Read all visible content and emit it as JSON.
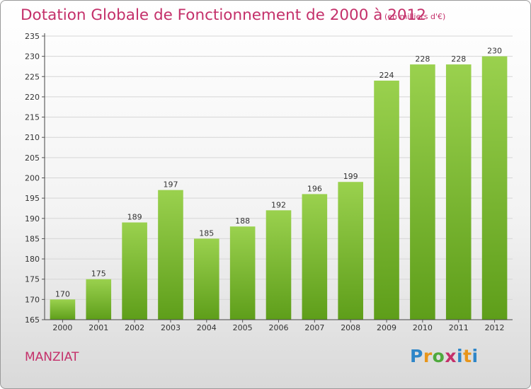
{
  "chart_data": {
    "type": "bar",
    "title": "Dotation Globale de Fonctionnement de 2000 à 2012",
    "subtitle": "(en milliers d'€)",
    "categories": [
      "2000",
      "2001",
      "2002",
      "2003",
      "2004",
      "2005",
      "2006",
      "2007",
      "2008",
      "2009",
      "2010",
      "2011",
      "2012"
    ],
    "values": [
      170,
      175,
      189,
      197,
      185,
      188,
      192,
      196,
      199,
      224,
      228,
      228,
      230
    ],
    "ylim": [
      165,
      235
    ],
    "yticks": [
      165,
      170,
      175,
      180,
      185,
      190,
      195,
      200,
      205,
      210,
      215,
      220,
      225,
      230,
      235
    ],
    "grid": true,
    "bar_color": "#8cc63f"
  },
  "footer": {
    "commune": "MANZIAT",
    "logo_text": "Proxiti"
  }
}
